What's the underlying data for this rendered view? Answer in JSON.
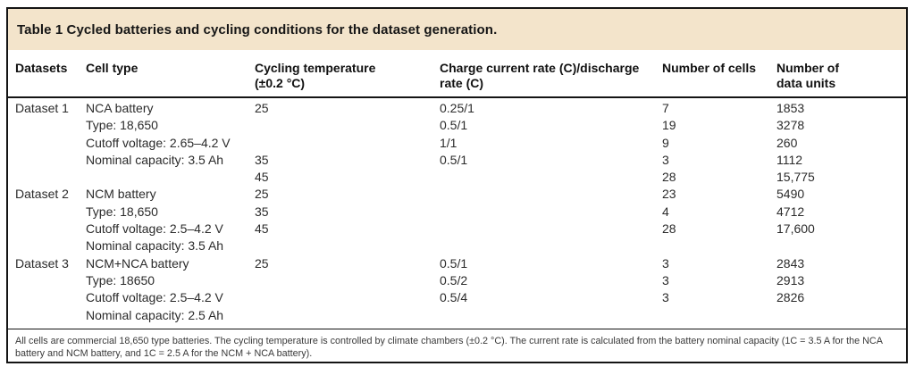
{
  "colors": {
    "title_bar_bg": "#f3e4cb",
    "border": "#141414",
    "body_text": "#2b2b2b"
  },
  "table": {
    "title": "Table 1 Cycled batteries and cycling conditions for the dataset generation.",
    "columns": [
      "Datasets",
      "Cell type",
      "Cycling temperature\n(±0.2 °C)",
      "Charge current rate (C)/discharge\nrate (C)",
      "Number of cells",
      "Number of\ndata units"
    ],
    "rows": [
      [
        "Dataset 1",
        "NCA battery",
        "25",
        "0.25/1",
        "7",
        "1853"
      ],
      [
        "",
        "Type: 18,650",
        "",
        "0.5/1",
        "19",
        "3278"
      ],
      [
        "",
        "Cutoff voltage: 2.65–4.2 V",
        "",
        "1/1",
        "9",
        "260"
      ],
      [
        "",
        "Nominal capacity: 3.5 Ah",
        "35",
        "0.5/1",
        "3",
        "1112"
      ],
      [
        "",
        "",
        "45",
        "",
        "28",
        "15,775"
      ],
      [
        "Dataset 2",
        "NCM battery",
        "25",
        "",
        "23",
        "5490"
      ],
      [
        "",
        "Type: 18,650",
        "35",
        "",
        "4",
        "4712"
      ],
      [
        "",
        "Cutoff voltage: 2.5–4.2 V",
        "45",
        "",
        "28",
        "17,600"
      ],
      [
        "",
        "Nominal capacity: 3.5 Ah",
        "",
        "",
        "",
        ""
      ],
      [
        "Dataset 3",
        "NCM+NCA battery",
        "25",
        "0.5/1",
        "3",
        "2843"
      ],
      [
        "",
        "Type: 18650",
        "",
        "0.5/2",
        "3",
        "2913"
      ],
      [
        "",
        "Cutoff voltage: 2.5–4.2 V",
        "",
        "0.5/4",
        "3",
        "2826"
      ],
      [
        "",
        "Nominal capacity: 2.5 Ah",
        "",
        "",
        "",
        ""
      ]
    ],
    "footnote": "All cells are commercial 18,650 type batteries. The cycling temperature is controlled by climate chambers (±0.2 °C). The current rate is calculated from the battery nominal capacity (1C = 3.5 A for the NCA battery and NCM battery, and 1C = 2.5 A for the NCM + NCA battery)."
  }
}
